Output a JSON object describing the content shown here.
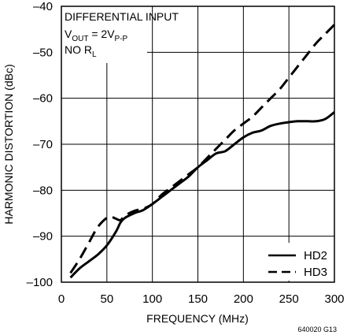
{
  "chart_data": {
    "type": "line",
    "xlabel": "FREQUENCY (MHz)",
    "ylabel": "HARMONIC DISTORTION (dBc)",
    "xlim": [
      0,
      300
    ],
    "ylim": [
      -100,
      -40
    ],
    "x_ticks": [
      "0",
      "50",
      "100",
      "150",
      "200",
      "250",
      "300"
    ],
    "y_ticks": [
      "–100",
      "–90",
      "–80",
      "–70",
      "–60",
      "–50",
      "–40"
    ],
    "grid": true,
    "legend_position": "bottom-right",
    "annotations": {
      "line1": "DIFFERENTIAL INPUT",
      "line2_main": "V",
      "line2_sub": "OUT",
      "line2_mid": " = 2V",
      "line2_sub2": "P-P",
      "line3_main": "NO R",
      "line3_sub": "L"
    },
    "figure_code": "640020 G13",
    "series": [
      {
        "name": "HD2",
        "style": "solid",
        "x": [
          10,
          20,
          30,
          40,
          50,
          60,
          65,
          70,
          80,
          90,
          100,
          110,
          120,
          130,
          140,
          150,
          160,
          170,
          180,
          190,
          200,
          210,
          220,
          230,
          240,
          250,
          260,
          270,
          280,
          290,
          300
        ],
        "y": [
          -99,
          -97,
          -95.5,
          -94,
          -92,
          -89,
          -87,
          -86,
          -85,
          -84.3,
          -83,
          -81.5,
          -80,
          -78.5,
          -77,
          -75,
          -73.5,
          -72,
          -71.5,
          -70,
          -68.5,
          -67.5,
          -67,
          -66,
          -65.5,
          -65.2,
          -65,
          -65,
          -65,
          -64.5,
          -63
        ]
      },
      {
        "name": "HD3",
        "style": "dashed",
        "x": [
          10,
          20,
          30,
          40,
          50,
          55,
          60,
          65,
          70,
          80,
          90,
          100,
          110,
          120,
          130,
          140,
          150,
          160,
          170,
          180,
          190,
          200,
          210,
          220,
          230,
          240,
          250,
          260,
          270,
          280,
          290,
          300
        ],
        "y": [
          -98,
          -95,
          -91.5,
          -88,
          -86,
          -85.8,
          -86.2,
          -86.5,
          -85.5,
          -84.5,
          -84,
          -83,
          -81,
          -79.5,
          -78,
          -76.5,
          -75,
          -73,
          -71,
          -69,
          -67,
          -65.5,
          -64,
          -62,
          -60,
          -58,
          -55.5,
          -53,
          -50.5,
          -48,
          -46,
          -44
        ]
      }
    ]
  }
}
